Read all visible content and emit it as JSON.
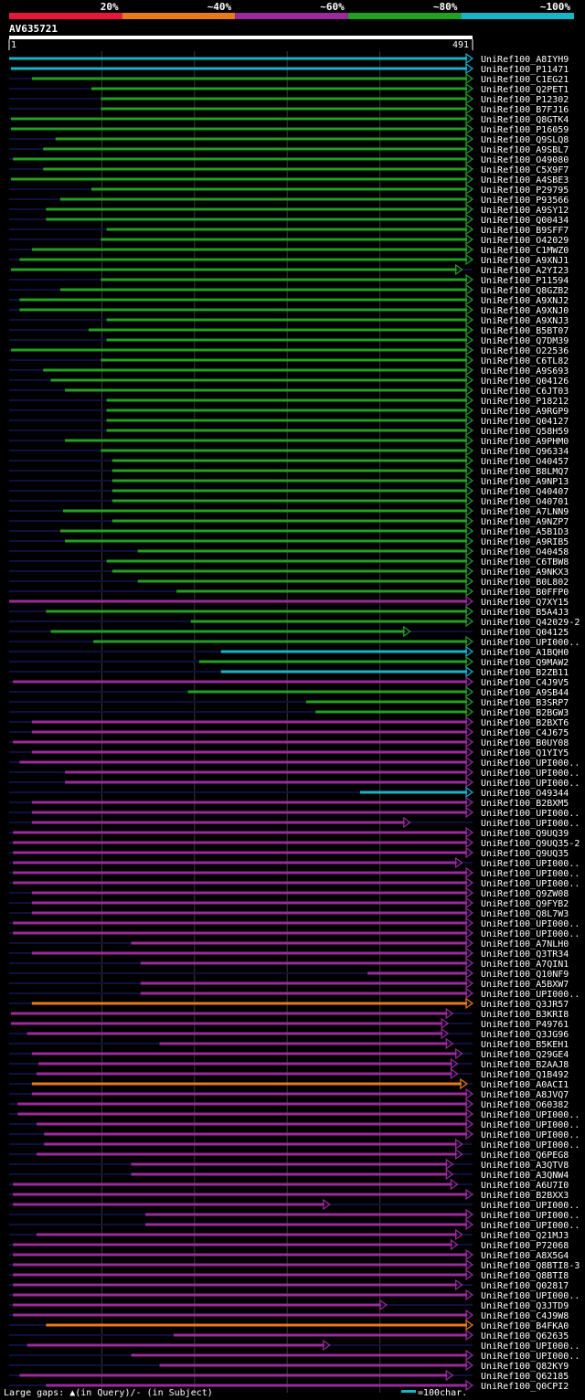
{
  "query": {
    "name": "AV635721",
    "start": "1",
    "end": "491",
    "length": 491
  },
  "identity_legend": [
    {
      "label": "20%",
      "color": "#e8163c"
    },
    {
      "label": "~40%",
      "color": "#e87a1a"
    },
    {
      "label": "~60%",
      "color": "#9b2a9b"
    },
    {
      "label": "~80%",
      "color": "#22a022"
    },
    {
      "label": "~100%",
      "color": "#18b4c8"
    }
  ],
  "footer": {
    "gaps_text": "Large gaps: ▲(in Query)/- (in Subject)",
    "scale_text": "=100char.",
    "scale_color": "#18b4c8"
  },
  "chart_data": {
    "type": "alignment-map",
    "x_range": [
      1,
      491
    ],
    "hits": [
      {
        "name": "UniRef100_A8IYH9",
        "s": 1,
        "e": 491,
        "c": "#18b4c8"
      },
      {
        "name": "UniRef100_P11471",
        "s": 3,
        "e": 491,
        "c": "#18b4c8"
      },
      {
        "name": "UniRef100_C1EG21",
        "s": 25,
        "e": 491,
        "c": "#22a022"
      },
      {
        "name": "UniRef100_Q2PET1",
        "s": 88,
        "e": 491,
        "c": "#22a022"
      },
      {
        "name": "UniRef100_P12302",
        "s": 98,
        "e": 491,
        "c": "#22a022"
      },
      {
        "name": "UniRef100_B7FJ16",
        "s": 98,
        "e": 491,
        "c": "#22a022"
      },
      {
        "name": "UniRef100_Q8GTK4",
        "s": 3,
        "e": 491,
        "c": "#22a022"
      },
      {
        "name": "UniRef100_P16059",
        "s": 3,
        "e": 491,
        "c": "#22a022"
      },
      {
        "name": "UniRef100_Q9SLQ8",
        "s": 50,
        "e": 491,
        "c": "#22a022"
      },
      {
        "name": "UniRef100_A9SBL7",
        "s": 37,
        "e": 491,
        "c": "#22a022"
      },
      {
        "name": "UniRef100_O49080",
        "s": 5,
        "e": 491,
        "c": "#22a022"
      },
      {
        "name": "UniRef100_C5X9F7",
        "s": 37,
        "e": 491,
        "c": "#22a022"
      },
      {
        "name": "UniRef100_A4SBE3",
        "s": 3,
        "e": 491,
        "c": "#22a022"
      },
      {
        "name": "UniRef100_P29795",
        "s": 88,
        "e": 491,
        "c": "#22a022"
      },
      {
        "name": "UniRef100_P93566",
        "s": 55,
        "e": 491,
        "c": "#22a022"
      },
      {
        "name": "UniRef100_A9SY12",
        "s": 40,
        "e": 491,
        "c": "#22a022"
      },
      {
        "name": "UniRef100_Q00434",
        "s": 40,
        "e": 491,
        "c": "#22a022"
      },
      {
        "name": "UniRef100_B9SFF7",
        "s": 104,
        "e": 491,
        "c": "#22a022"
      },
      {
        "name": "UniRef100_O42029",
        "s": 98,
        "e": 491,
        "c": "#22a022"
      },
      {
        "name": "UniRef100_C1MWZ0",
        "s": 25,
        "e": 491,
        "c": "#22a022"
      },
      {
        "name": "UniRef100_A9XNJ1",
        "s": 12,
        "e": 491,
        "c": "#22a022"
      },
      {
        "name": "UniRef100_A2YI23",
        "s": 3,
        "e": 480,
        "c": "#22a022"
      },
      {
        "name": "UniRef100_P11594",
        "s": 98,
        "e": 491,
        "c": "#22a022"
      },
      {
        "name": "UniRef100_Q8GZB2",
        "s": 55,
        "e": 491,
        "c": "#22a022"
      },
      {
        "name": "UniRef100_A9XNJ2",
        "s": 12,
        "e": 491,
        "c": "#22a022"
      },
      {
        "name": "UniRef100_A9XNJ0",
        "s": 12,
        "e": 491,
        "c": "#22a022"
      },
      {
        "name": "UniRef100_A9XNJ3",
        "s": 104,
        "e": 491,
        "c": "#22a022"
      },
      {
        "name": "UniRef100_B5BT07",
        "s": 85,
        "e": 491,
        "c": "#22a022"
      },
      {
        "name": "UniRef100_Q7DM39",
        "s": 104,
        "e": 491,
        "c": "#22a022"
      },
      {
        "name": "UniRef100_O22536",
        "s": 3,
        "e": 491,
        "c": "#22a022"
      },
      {
        "name": "UniRef100_C6TL82",
        "s": 98,
        "e": 491,
        "c": "#22a022"
      },
      {
        "name": "UniRef100_A9S693",
        "s": 37,
        "e": 491,
        "c": "#22a022"
      },
      {
        "name": "UniRef100_Q04126",
        "s": 45,
        "e": 491,
        "c": "#22a022"
      },
      {
        "name": "UniRef100_C6JT03",
        "s": 60,
        "e": 491,
        "c": "#22a022"
      },
      {
        "name": "UniRef100_P18212",
        "s": 104,
        "e": 491,
        "c": "#22a022"
      },
      {
        "name": "UniRef100_A9RGP9",
        "s": 104,
        "e": 491,
        "c": "#22a022"
      },
      {
        "name": "UniRef100_Q04127",
        "s": 104,
        "e": 491,
        "c": "#22a022"
      },
      {
        "name": "UniRef100_Q58H59",
        "s": 104,
        "e": 491,
        "c": "#22a022"
      },
      {
        "name": "UniRef100_A9PHM0",
        "s": 60,
        "e": 491,
        "c": "#22a022"
      },
      {
        "name": "UniRef100_Q96334",
        "s": 98,
        "e": 491,
        "c": "#22a022"
      },
      {
        "name": "UniRef100_O40457",
        "s": 110,
        "e": 491,
        "c": "#22a022"
      },
      {
        "name": "UniRef100_B8LMQ7",
        "s": 110,
        "e": 491,
        "c": "#22a022"
      },
      {
        "name": "UniRef100_A9NP13",
        "s": 110,
        "e": 491,
        "c": "#22a022"
      },
      {
        "name": "UniRef100_Q40407",
        "s": 110,
        "e": 491,
        "c": "#22a022"
      },
      {
        "name": "UniRef100_O40701",
        "s": 110,
        "e": 491,
        "c": "#22a022"
      },
      {
        "name": "UniRef100_A7LNN9",
        "s": 58,
        "e": 491,
        "c": "#22a022"
      },
      {
        "name": "UniRef100_A9NZP7",
        "s": 110,
        "e": 491,
        "c": "#22a022"
      },
      {
        "name": "UniRef100_A5B1D3",
        "s": 55,
        "e": 491,
        "c": "#22a022"
      },
      {
        "name": "UniRef100_A9RIB5",
        "s": 60,
        "e": 491,
        "c": "#22a022"
      },
      {
        "name": "UniRef100_O40458",
        "s": 137,
        "e": 491,
        "c": "#22a022"
      },
      {
        "name": "UniRef100_C6TBW8",
        "s": 104,
        "e": 491,
        "c": "#22a022"
      },
      {
        "name": "UniRef100_A9NKX3",
        "s": 110,
        "e": 491,
        "c": "#22a022"
      },
      {
        "name": "UniRef100_B0L802",
        "s": 137,
        "e": 491,
        "c": "#22a022"
      },
      {
        "name": "UniRef100_B0FFP0",
        "s": 178,
        "e": 491,
        "c": "#22a022"
      },
      {
        "name": "UniRef100_Q7XY15",
        "s": 1,
        "e": 491,
        "c": "#9b2a9b"
      },
      {
        "name": "UniRef100_B5A4J3",
        "s": 40,
        "e": 491,
        "c": "#22a022"
      },
      {
        "name": "UniRef100_Q42029-2",
        "s": 193,
        "e": 491,
        "c": "#22a022"
      },
      {
        "name": "UniRef100_Q04125",
        "s": 45,
        "e": 425,
        "c": "#22a022"
      },
      {
        "name": "UniRef100_UPI000..",
        "s": 90,
        "e": 491,
        "c": "#22a022"
      },
      {
        "name": "UniRef100_A1BQH0",
        "s": 225,
        "e": 491,
        "c": "#18b4c8"
      },
      {
        "name": "UniRef100_Q9MAW2",
        "s": 202,
        "e": 491,
        "c": "#22a022"
      },
      {
        "name": "UniRef100_B2ZB11",
        "s": 225,
        "e": 491,
        "c": "#18b4c8"
      },
      {
        "name": "UniRef100_C4J9V5",
        "s": 5,
        "e": 491,
        "c": "#9b2a9b"
      },
      {
        "name": "UniRef100_A9SB44",
        "s": 190,
        "e": 491,
        "c": "#22a022"
      },
      {
        "name": "UniRef100_B3SRP7",
        "s": 315,
        "e": 491,
        "c": "#22a022"
      },
      {
        "name": "UniRef100_B2BGW3",
        "s": 325,
        "e": 491,
        "c": "#22a022"
      },
      {
        "name": "UniRef100_B2BXT6",
        "s": 25,
        "e": 491,
        "c": "#9b2a9b"
      },
      {
        "name": "UniRef100_C4J675",
        "s": 25,
        "e": 491,
        "c": "#9b2a9b"
      },
      {
        "name": "UniRef100_B0UY08",
        "s": 5,
        "e": 491,
        "c": "#9b2a9b"
      },
      {
        "name": "UniRef100_Q1YIY5",
        "s": 25,
        "e": 491,
        "c": "#9b2a9b"
      },
      {
        "name": "UniRef100_UPI000..",
        "s": 12,
        "e": 491,
        "c": "#9b2a9b"
      },
      {
        "name": "UniRef100_UPI000..",
        "s": 60,
        "e": 491,
        "c": "#9b2a9b"
      },
      {
        "name": "UniRef100_UPI000..",
        "s": 60,
        "e": 491,
        "c": "#9b2a9b"
      },
      {
        "name": "UniRef100_O49344",
        "s": 372,
        "e": 491,
        "c": "#18b4c8"
      },
      {
        "name": "UniRef100_B2BXM5",
        "s": 25,
        "e": 491,
        "c": "#9b2a9b"
      },
      {
        "name": "UniRef100_UPI000..",
        "s": 25,
        "e": 491,
        "c": "#9b2a9b"
      },
      {
        "name": "UniRef100_UPI000..",
        "s": 25,
        "e": 425,
        "c": "#9b2a9b"
      },
      {
        "name": "UniRef100_Q9UQ39",
        "s": 5,
        "e": 491,
        "c": "#9b2a9b"
      },
      {
        "name": "UniRef100_Q9UQ35-2",
        "s": 5,
        "e": 491,
        "c": "#9b2a9b"
      },
      {
        "name": "UniRef100_Q9UQ35",
        "s": 5,
        "e": 491,
        "c": "#9b2a9b"
      },
      {
        "name": "UniRef100_UPI000..",
        "s": 5,
        "e": 480,
        "c": "#9b2a9b"
      },
      {
        "name": "UniRef100_UPI000..",
        "s": 5,
        "e": 491,
        "c": "#9b2a9b"
      },
      {
        "name": "UniRef100_UPI000..",
        "s": 5,
        "e": 491,
        "c": "#9b2a9b"
      },
      {
        "name": "UniRef100_Q9ZW08",
        "s": 25,
        "e": 491,
        "c": "#9b2a9b"
      },
      {
        "name": "UniRef100_Q9FYB2",
        "s": 25,
        "e": 491,
        "c": "#9b2a9b"
      },
      {
        "name": "UniRef100_Q8L7W3",
        "s": 25,
        "e": 491,
        "c": "#9b2a9b"
      },
      {
        "name": "UniRef100_UPI000..",
        "s": 5,
        "e": 491,
        "c": "#9b2a9b"
      },
      {
        "name": "UniRef100_UPI000..",
        "s": 5,
        "e": 491,
        "c": "#9b2a9b"
      },
      {
        "name": "UniRef100_A7NLH0",
        "s": 130,
        "e": 491,
        "c": "#9b2a9b"
      },
      {
        "name": "UniRef100_Q3TR34",
        "s": 25,
        "e": 491,
        "c": "#9b2a9b"
      },
      {
        "name": "UniRef100_A7QIN1",
        "s": 140,
        "e": 491,
        "c": "#9b2a9b"
      },
      {
        "name": "UniRef100_Q10NF9",
        "s": 380,
        "e": 491,
        "c": "#9b2a9b"
      },
      {
        "name": "UniRef100_A5BXW7",
        "s": 140,
        "e": 491,
        "c": "#9b2a9b"
      },
      {
        "name": "UniRef100_UPI000..",
        "s": 140,
        "e": 491,
        "c": "#9b2a9b"
      },
      {
        "name": "UniRef100_Q3JR57",
        "s": 25,
        "e": 491,
        "c": "#e87a1a"
      },
      {
        "name": "UniRef100_B3KRI8",
        "s": 3,
        "e": 470,
        "c": "#9b2a9b"
      },
      {
        "name": "UniRef100_P49761",
        "s": 3,
        "e": 465,
        "c": "#9b2a9b"
      },
      {
        "name": "UniRef100_Q3JG96",
        "s": 20,
        "e": 465,
        "c": "#9b2a9b"
      },
      {
        "name": "UniRef100_B5KEH1",
        "s": 160,
        "e": 470,
        "c": "#9b2a9b"
      },
      {
        "name": "UniRef100_Q29GE4",
        "s": 25,
        "e": 480,
        "c": "#9b2a9b"
      },
      {
        "name": "UniRef100_B2AAJ8",
        "s": 32,
        "e": 475,
        "c": "#9b2a9b"
      },
      {
        "name": "UniRef100_Q1B492",
        "s": 30,
        "e": 475,
        "c": "#9b2a9b"
      },
      {
        "name": "UniRef100_A0ACI1",
        "s": 25,
        "e": 485,
        "c": "#e87a1a"
      },
      {
        "name": "UniRef100_A8JVQ7",
        "s": 25,
        "e": 491,
        "c": "#9b2a9b"
      },
      {
        "name": "UniRef100_O60382",
        "s": 10,
        "e": 491,
        "c": "#9b2a9b"
      },
      {
        "name": "UniRef100_UPI000..",
        "s": 10,
        "e": 491,
        "c": "#9b2a9b"
      },
      {
        "name": "UniRef100_UPI000..",
        "s": 30,
        "e": 491,
        "c": "#9b2a9b"
      },
      {
        "name": "UniRef100_UPI000..",
        "s": 38,
        "e": 491,
        "c": "#9b2a9b"
      },
      {
        "name": "UniRef100_UPI000..",
        "s": 38,
        "e": 480,
        "c": "#9b2a9b"
      },
      {
        "name": "UniRef100_Q6PEG8",
        "s": 30,
        "e": 480,
        "c": "#9b2a9b"
      },
      {
        "name": "UniRef100_A3QTV8",
        "s": 130,
        "e": 470,
        "c": "#9b2a9b"
      },
      {
        "name": "UniRef100_A3QNW4",
        "s": 130,
        "e": 470,
        "c": "#9b2a9b"
      },
      {
        "name": "UniRef100_A6U7I0",
        "s": 5,
        "e": 475,
        "c": "#9b2a9b"
      },
      {
        "name": "UniRef100_B2BXX3",
        "s": 5,
        "e": 491,
        "c": "#9b2a9b"
      },
      {
        "name": "UniRef100_UPI000..",
        "s": 5,
        "e": 340,
        "c": "#9b2a9b"
      },
      {
        "name": "UniRef100_UPI000..",
        "s": 145,
        "e": 491,
        "c": "#9b2a9b"
      },
      {
        "name": "UniRef100_UPI000..",
        "s": 145,
        "e": 491,
        "c": "#9b2a9b"
      },
      {
        "name": "UniRef100_Q21MJ3",
        "s": 30,
        "e": 480,
        "c": "#9b2a9b"
      },
      {
        "name": "UniRef100_P72068",
        "s": 5,
        "e": 475,
        "c": "#9b2a9b"
      },
      {
        "name": "UniRef100_A8X5G4",
        "s": 5,
        "e": 491,
        "c": "#9b2a9b"
      },
      {
        "name": "UniRef100_Q8BTI8-3",
        "s": 5,
        "e": 491,
        "c": "#9b2a9b"
      },
      {
        "name": "UniRef100_Q8BTI8",
        "s": 5,
        "e": 491,
        "c": "#9b2a9b"
      },
      {
        "name": "UniRef100_Q02817",
        "s": 5,
        "e": 480,
        "c": "#9b2a9b"
      },
      {
        "name": "UniRef100_UPI000..",
        "s": 5,
        "e": 491,
        "c": "#9b2a9b"
      },
      {
        "name": "UniRef100_Q3JTD9",
        "s": 5,
        "e": 400,
        "c": "#9b2a9b"
      },
      {
        "name": "UniRef100_C4J9W8",
        "s": 5,
        "e": 491,
        "c": "#9b2a9b"
      },
      {
        "name": "UniRef100_B4FKA0",
        "s": 40,
        "e": 491,
        "c": "#e87a1a"
      },
      {
        "name": "UniRef100_Q62635",
        "s": 175,
        "e": 491,
        "c": "#9b2a9b"
      },
      {
        "name": "UniRef100_UPI000..",
        "s": 20,
        "e": 340,
        "c": "#9b2a9b"
      },
      {
        "name": "UniRef100_UPI000..",
        "s": 130,
        "e": 491,
        "c": "#9b2a9b"
      },
      {
        "name": "UniRef100_Q82KY9",
        "s": 160,
        "e": 491,
        "c": "#9b2a9b"
      },
      {
        "name": "UniRef100_Q62185",
        "s": 12,
        "e": 470,
        "c": "#9b2a9b"
      },
      {
        "name": "UniRef100_Q0CPI2",
        "s": 40,
        "e": 491,
        "c": "#9b2a9b"
      }
    ]
  }
}
